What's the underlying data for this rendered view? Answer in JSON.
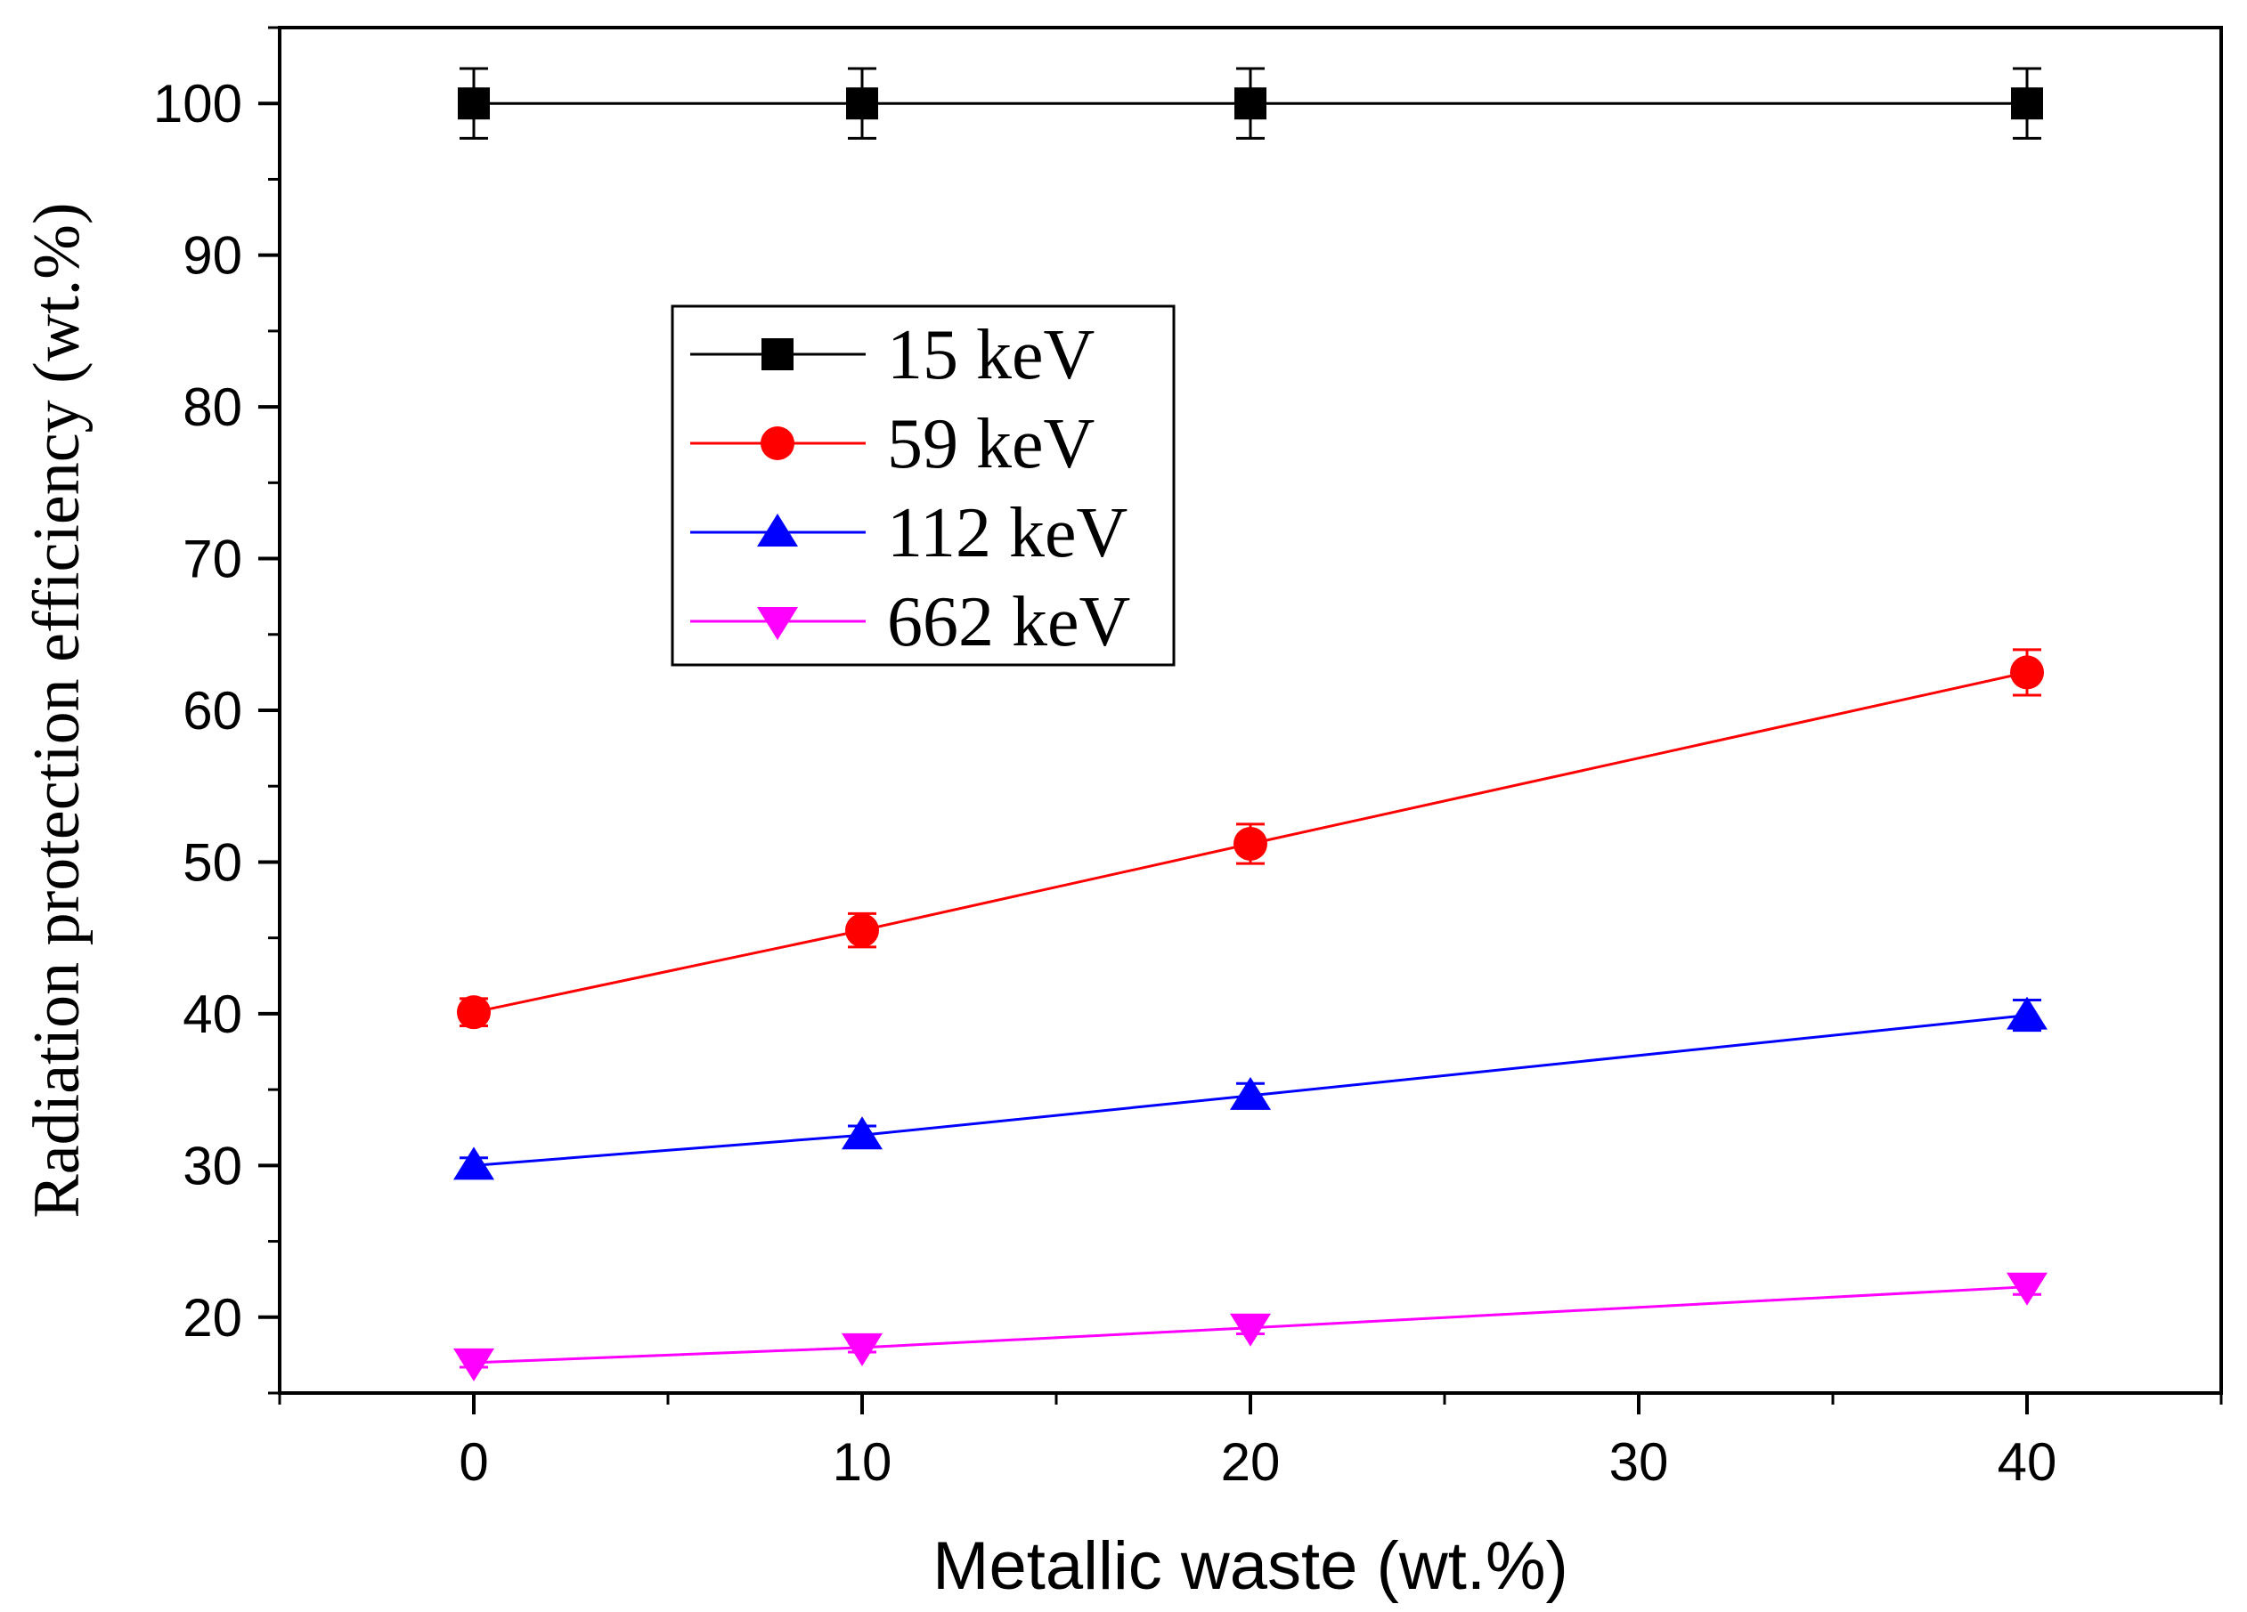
{
  "chart_data": {
    "type": "line",
    "title": "",
    "xlabel": "Metallic waste (wt.%)",
    "ylabel": "Radiation protection efficiency (wt.%)",
    "xlim": [
      -5,
      45
    ],
    "ylim": [
      15,
      105
    ],
    "xticks": [
      0,
      10,
      20,
      30,
      40
    ],
    "yticks": [
      20,
      30,
      40,
      50,
      60,
      70,
      80,
      90,
      100
    ],
    "x": [
      0,
      10,
      20,
      40
    ],
    "series": [
      {
        "name": "15 keV",
        "marker": "square",
        "color": "#000000",
        "values": [
          100,
          100,
          100,
          100
        ],
        "errors": [
          2.3,
          2.3,
          2.3,
          2.3
        ]
      },
      {
        "name": "59 keV",
        "marker": "circle",
        "color": "#ff0000",
        "values": [
          40.1,
          45.5,
          51.2,
          62.5
        ],
        "errors": [
          0.9,
          1.1,
          1.3,
          1.5
        ]
      },
      {
        "name": "112 keV",
        "marker": "triangle-up",
        "color": "#0000ff",
        "values": [
          30.0,
          32.0,
          34.6,
          39.9
        ],
        "errors": [
          0.5,
          0.6,
          0.8,
          1.0
        ]
      },
      {
        "name": "662 keV",
        "marker": "triangle-down",
        "color": "#ff00ff",
        "values": [
          17.0,
          18.0,
          19.3,
          22.0
        ],
        "errors": [
          0.3,
          0.3,
          0.4,
          0.5
        ]
      }
    ],
    "legend_position": "upper-left-inside",
    "grid": false
  }
}
